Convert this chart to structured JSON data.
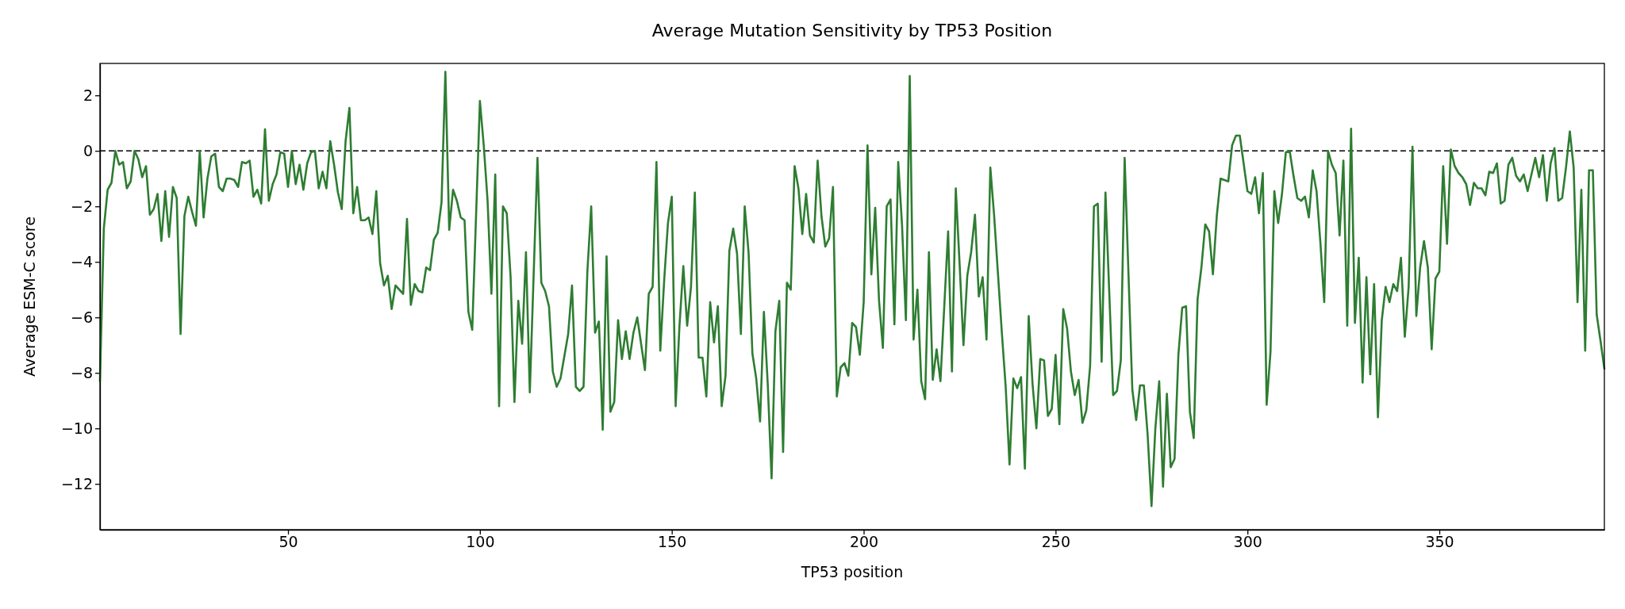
{
  "chart_data": {
    "type": "line",
    "title": "Average Mutation Sensitivity by TP53 Position",
    "xlabel": "TP53 position",
    "ylabel": "Average ESM-C score",
    "xlim": [
      1,
      393
    ],
    "xticks": [
      50,
      100,
      150,
      200,
      250,
      300,
      350
    ],
    "ylim": [
      -13.65,
      3.15
    ],
    "yticks": [
      -12,
      -10,
      -8,
      -6,
      -4,
      -2,
      0,
      2
    ],
    "line_style": "solid",
    "ref_lines": [
      {
        "axis": "y",
        "value": 0,
        "color": "#000000",
        "line_style": "dashed"
      }
    ],
    "series": [
      {
        "color": "#2e7d32",
        "x": [
          1,
          2,
          3,
          4,
          5,
          6,
          7,
          8,
          9,
          10,
          11,
          12,
          13,
          14,
          15,
          16,
          17,
          18,
          19,
          20,
          21,
          22,
          23,
          24,
          25,
          26,
          27,
          28,
          29,
          30,
          31,
          32,
          33,
          34,
          35,
          36,
          37,
          38,
          39,
          40,
          41,
          42,
          43,
          44,
          45,
          46,
          47,
          48,
          49,
          50,
          51,
          52,
          53,
          54,
          55,
          56,
          57,
          58,
          59,
          60,
          61,
          62,
          63,
          64,
          65,
          66,
          67,
          68,
          69,
          70,
          71,
          72,
          73,
          74,
          75,
          76,
          77,
          78,
          79,
          80,
          81,
          82,
          83,
          84,
          85,
          86,
          87,
          88,
          89,
          90,
          91,
          92,
          93,
          94,
          95,
          96,
          97,
          98,
          100,
          101,
          102,
          103,
          104,
          105,
          106,
          107,
          108,
          109,
          110,
          111,
          112,
          113,
          115,
          116,
          117,
          118,
          119,
          120,
          121,
          122,
          123,
          124,
          125,
          126,
          127,
          128,
          129,
          130,
          131,
          132,
          133,
          134,
          135,
          136,
          137,
          138,
          139,
          140,
          141,
          142,
          143,
          144,
          145,
          146,
          147,
          148,
          149,
          150,
          151,
          152,
          153,
          154,
          155,
          156,
          157,
          158,
          159,
          160,
          161,
          162,
          163,
          164,
          165,
          166,
          167,
          168,
          169,
          170,
          171,
          172,
          173,
          174,
          175,
          176,
          177,
          178,
          179,
          180,
          181,
          182,
          183,
          184,
          185,
          186,
          187,
          188,
          189,
          190,
          191,
          192,
          193,
          194,
          195,
          196,
          197,
          198,
          199,
          200,
          201,
          202,
          203,
          204,
          205,
          206,
          207,
          208,
          209,
          210,
          211,
          212,
          213,
          214,
          215,
          216,
          217,
          218,
          219,
          220,
          221,
          222,
          223,
          224,
          225,
          226,
          227,
          228,
          229,
          230,
          231,
          232,
          233,
          234,
          235,
          236,
          237,
          238,
          239,
          240,
          241,
          242,
          243,
          244,
          245,
          246,
          247,
          248,
          249,
          250,
          251,
          252,
          253,
          254,
          255,
          256,
          257,
          258,
          259,
          260,
          261,
          262,
          263,
          264,
          265,
          266,
          267,
          268,
          269,
          270,
          271,
          272,
          273,
          274,
          275,
          276,
          277,
          278,
          279,
          280,
          281,
          282,
          283,
          284,
          285,
          286,
          287,
          288,
          289,
          290,
          291,
          292,
          293,
          294,
          295,
          296,
          297,
          298,
          299,
          300,
          301,
          302,
          303,
          304,
          305,
          306,
          307,
          308,
          309,
          310,
          311,
          312,
          313,
          314,
          315,
          316,
          317,
          318,
          319,
          320,
          321,
          322,
          323,
          324,
          325,
          326,
          327,
          328,
          329,
          330,
          331,
          332,
          333,
          334,
          335,
          336,
          337,
          338,
          339,
          340,
          341,
          342,
          343,
          344,
          345,
          346,
          347,
          348,
          349,
          350,
          351,
          352,
          353,
          354,
          355,
          356,
          357,
          358,
          359,
          360,
          361,
          362,
          363,
          364,
          365,
          366,
          367,
          368,
          369,
          370,
          371,
          372,
          373,
          374,
          375,
          376,
          377,
          378,
          379,
          380,
          381,
          382,
          383,
          384,
          385,
          386,
          387,
          388,
          389,
          390,
          391,
          392,
          393
        ],
        "values": [
          -8.3,
          -2.8,
          -1.4,
          -1.15,
          0,
          -0.5,
          -0.4,
          -1.35,
          -1.1,
          0,
          -0.3,
          -0.95,
          -0.55,
          -2.3,
          -2.1,
          -1.55,
          -3.25,
          -1.45,
          -3.1,
          -1.3,
          -1.7,
          -6.6,
          -2.35,
          -1.65,
          -2.2,
          -2.7,
          0,
          -2.4,
          -1.0,
          -0.2,
          -0.1,
          -1.3,
          -1.45,
          -1.0,
          -1.0,
          -1.05,
          -1.3,
          -0.4,
          -0.45,
          -0.35,
          -1.65,
          -1.4,
          -1.9,
          0.78,
          -1.8,
          -1.2,
          -0.85,
          -0.05,
          -0.1,
          -1.3,
          0,
          -1.2,
          -0.5,
          -1.4,
          -0.45,
          -0.05,
          0,
          -1.35,
          -0.75,
          -1.35,
          0.35,
          -0.5,
          -1.5,
          -2.1,
          0.35,
          1.55,
          -2.25,
          -1.3,
          -2.5,
          -2.5,
          -2.4,
          -3.0,
          -1.45,
          -4.05,
          -4.85,
          -4.5,
          -5.7,
          -4.85,
          -5.0,
          -5.15,
          -2.45,
          -5.55,
          -4.8,
          -5.05,
          -5.1,
          -4.2,
          -4.3,
          -3.2,
          -2.95,
          -1.85,
          2.85,
          -2.85,
          -1.4,
          -1.8,
          -2.4,
          -2.5,
          -5.8,
          -6.45,
          1.8,
          0.2,
          -1.8,
          -5.15,
          -0.85,
          -9.2,
          -2.0,
          -2.25,
          -4.55,
          -9.05,
          -5.4,
          -6.95,
          -3.65,
          -8.7,
          -0.25,
          -4.75,
          -5.05,
          -5.6,
          -7.95,
          -8.5,
          -8.2,
          -7.4,
          -6.6,
          -4.85,
          -8.5,
          -8.65,
          -8.5,
          -4.35,
          -2.0,
          -6.55,
          -6.15,
          -10.05,
          -3.8,
          -9.4,
          -9.05,
          -6.1,
          -7.5,
          -6.5,
          -7.5,
          -6.55,
          -6.0,
          -6.95,
          -7.9,
          -5.15,
          -4.9,
          -0.4,
          -7.2,
          -4.7,
          -2.6,
          -1.65,
          -9.2,
          -6.3,
          -4.15,
          -6.3,
          -4.9,
          -1.5,
          -7.45,
          -7.45,
          -8.85,
          -5.45,
          -6.9,
          -5.6,
          -9.2,
          -8.1,
          -3.6,
          -2.8,
          -3.7,
          -6.6,
          -2.0,
          -3.65,
          -7.3,
          -8.2,
          -9.75,
          -5.8,
          -8.4,
          -11.8,
          -6.5,
          -5.4,
          -10.85,
          -4.75,
          -5.0,
          -0.55,
          -1.35,
          -3.0,
          -1.55,
          -3.05,
          -3.3,
          -0.35,
          -2.35,
          -3.45,
          -3.15,
          -1.3,
          -8.85,
          -7.8,
          -7.65,
          -8.1,
          -6.2,
          -6.35,
          -7.35,
          -5.45,
          0.2,
          -4.45,
          -2.05,
          -5.4,
          -7.1,
          -2.0,
          -1.75,
          -6.25,
          -0.4,
          -2.7,
          -6.1,
          2.7,
          -6.8,
          -5.0,
          -8.3,
          -8.95,
          -3.65,
          -8.25,
          -7.15,
          -8.3,
          -5.6,
          -2.9,
          -7.95,
          -1.35,
          -4.1,
          -7.0,
          -4.5,
          -3.65,
          -2.3,
          -5.25,
          -4.55,
          -6.8,
          -0.6,
          -2.35,
          -4.45,
          -6.55,
          -8.5,
          -11.3,
          -8.2,
          -8.55,
          -8.15,
          -11.45,
          -5.95,
          -8.4,
          -10.0,
          -7.5,
          -7.55,
          -9.55,
          -9.3,
          -7.35,
          -9.85,
          -5.7,
          -6.4,
          -7.95,
          -8.8,
          -8.25,
          -9.8,
          -9.35,
          -7.75,
          -2.0,
          -1.9,
          -7.6,
          -1.5,
          -5.15,
          -8.8,
          -8.65,
          -7.55,
          -0.25,
          -4.45,
          -8.6,
          -9.7,
          -8.45,
          -8.45,
          -10.25,
          -12.8,
          -10.0,
          -8.3,
          -12.1,
          -8.75,
          -11.4,
          -11.1,
          -7.35,
          -5.65,
          -5.6,
          -9.4,
          -10.35,
          -5.35,
          -4.2,
          -2.65,
          -2.9,
          -4.45,
          -2.35,
          -1.0,
          -1.05,
          -1.1,
          0.2,
          0.55,
          0.55,
          -0.45,
          -1.45,
          -1.55,
          -0.95,
          -2.25,
          -0.8,
          -9.15,
          -7.25,
          -1.45,
          -2.6,
          -1.55,
          -0.05,
          0,
          -0.9,
          -1.7,
          -1.8,
          -1.65,
          -2.4,
          -0.7,
          -1.45,
          -3.3,
          -5.45,
          0,
          -0.5,
          -0.8,
          -3.05,
          -0.35,
          -6.3,
          0.8,
          -6.2,
          -3.85,
          -8.35,
          -4.55,
          -8.05,
          -4.8,
          -9.6,
          -6.1,
          -4.9,
          -5.45,
          -4.8,
          -5.05,
          -3.85,
          -6.7,
          -4.9,
          0.15,
          -5.95,
          -4.2,
          -3.25,
          -4.2,
          -7.15,
          -4.6,
          -4.35,
          -0.55,
          -3.35,
          0.05,
          -0.55,
          -0.8,
          -0.95,
          -1.2,
          -1.95,
          -1.15,
          -1.35,
          -1.35,
          -1.6,
          -0.75,
          -0.8,
          -0.45,
          -1.9,
          -1.8,
          -0.5,
          -0.25,
          -0.9,
          -1.1,
          -0.85,
          -1.45,
          -0.85,
          -0.25,
          -0.95,
          -0.15,
          -1.8,
          -0.45,
          0.1,
          -1.8,
          -1.7,
          -0.6,
          0.7,
          -0.6,
          -5.45,
          -1.4,
          -7.2,
          -0.7,
          -0.7,
          -5.9,
          -6.85,
          -7.85
        ]
      }
    ]
  }
}
